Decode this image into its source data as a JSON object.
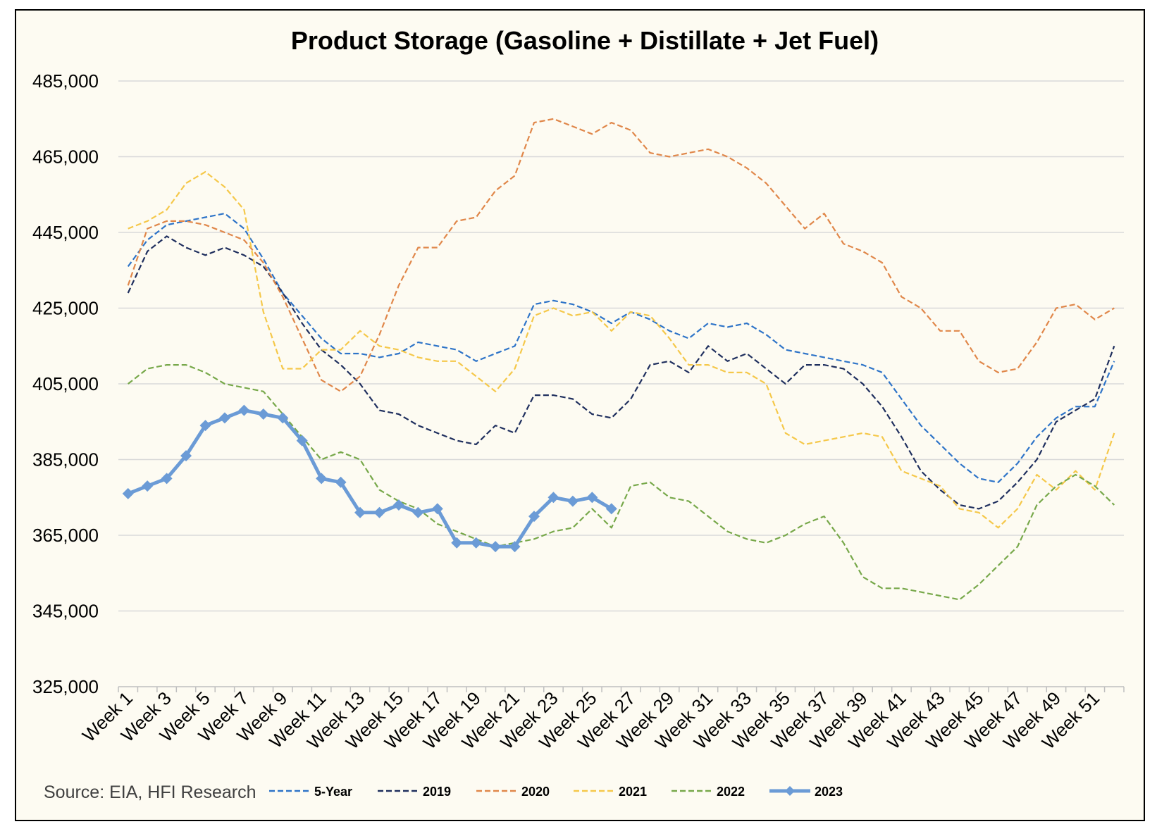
{
  "chart_data": {
    "type": "line",
    "title": "Product Storage (Gasoline + Distillate + Jet Fuel)",
    "source": "Source: EIA, HFI Research",
    "xlabel": "",
    "ylabel": "",
    "ylim": [
      325000,
      485000
    ],
    "yticks": [
      325000,
      345000,
      365000,
      385000,
      405000,
      425000,
      445000,
      465000,
      485000
    ],
    "ytick_labels": [
      "325,000",
      "345,000",
      "365,000",
      "385,000",
      "405,000",
      "425,000",
      "445,000",
      "465,000",
      "485,000"
    ],
    "xtick_labels": [
      "Week 1",
      "Week 3",
      "Week 5",
      "Week 7",
      "Week 9",
      "Week 11",
      "Week 13",
      "Week 15",
      "Week 17",
      "Week 19",
      "Week 21",
      "Week 23",
      "Week 25",
      "Week 27",
      "Week 29",
      "Week 31",
      "Week 33",
      "Week 35",
      "Week 37",
      "Week 39",
      "Week 41",
      "Week 43",
      "Week 45",
      "Week 47",
      "Week 49",
      "Week 51"
    ],
    "grid": true,
    "legend_position": "bottom",
    "background": "#fdfbf2",
    "series": [
      {
        "name": "5-Year",
        "color": "#2e74c8",
        "style": "dashed",
        "values": [
          436000,
          443000,
          447000,
          448000,
          449000,
          450000,
          446000,
          438000,
          429000,
          423000,
          417000,
          413000,
          413000,
          412000,
          413000,
          416000,
          415000,
          414000,
          411000,
          413000,
          415000,
          426000,
          427000,
          426000,
          424000,
          421000,
          424000,
          422000,
          419000,
          417000,
          421000,
          420000,
          421000,
          418000,
          414000,
          413000,
          412000,
          411000,
          410000,
          408000,
          401000,
          394000,
          389000,
          384000,
          380000,
          379000,
          384000,
          391000,
          396000,
          399000,
          399000,
          411000
        ]
      },
      {
        "name": "2019",
        "color": "#1f2f5e",
        "style": "dashed",
        "values": [
          429000,
          440000,
          444000,
          441000,
          439000,
          441000,
          439000,
          436000,
          429000,
          421000,
          414000,
          410000,
          405000,
          398000,
          397000,
          394000,
          392000,
          390000,
          389000,
          394000,
          392000,
          402000,
          402000,
          401000,
          397000,
          396000,
          401000,
          410000,
          411000,
          408000,
          415000,
          411000,
          413000,
          409000,
          405000,
          410000,
          410000,
          409000,
          405000,
          399000,
          391000,
          382000,
          377000,
          373000,
          372000,
          374000,
          379000,
          385000,
          395000,
          398000,
          401000,
          415000
        ]
      },
      {
        "name": "2020",
        "color": "#e0874a",
        "style": "dashed",
        "values": [
          431000,
          446000,
          448000,
          448000,
          447000,
          445000,
          443000,
          437000,
          428000,
          417000,
          406000,
          403000,
          407000,
          418000,
          431000,
          441000,
          441000,
          448000,
          449000,
          456000,
          460000,
          474000,
          475000,
          473000,
          471000,
          474000,
          472000,
          466000,
          465000,
          466000,
          467000,
          465000,
          462000,
          458000,
          452000,
          446000,
          450000,
          442000,
          440000,
          437000,
          428000,
          425000,
          419000,
          419000,
          411000,
          408000,
          409000,
          416000,
          425000,
          426000,
          422000,
          425000
        ]
      },
      {
        "name": "2021",
        "color": "#f5c84a",
        "style": "dashed",
        "values": [
          446000,
          448000,
          451000,
          458000,
          461000,
          457000,
          451000,
          424000,
          409000,
          409000,
          414000,
          414000,
          419000,
          415000,
          414000,
          412000,
          411000,
          411000,
          407000,
          403000,
          409000,
          423000,
          425000,
          423000,
          424000,
          419000,
          424000,
          423000,
          417000,
          410000,
          410000,
          408000,
          408000,
          405000,
          392000,
          389000,
          390000,
          391000,
          392000,
          391000,
          382000,
          380000,
          378000,
          372000,
          371000,
          367000,
          372000,
          381000,
          377000,
          382000,
          377000,
          392000
        ]
      },
      {
        "name": "2022",
        "color": "#77a84a",
        "style": "dashed",
        "values": [
          405000,
          409000,
          410000,
          410000,
          408000,
          405000,
          404000,
          403000,
          397000,
          391000,
          385000,
          387000,
          385000,
          377000,
          374000,
          372000,
          368000,
          366000,
          364000,
          362000,
          363000,
          364000,
          366000,
          367000,
          372000,
          367000,
          378000,
          379000,
          375000,
          374000,
          370000,
          366000,
          364000,
          363000,
          365000,
          368000,
          370000,
          363000,
          354000,
          351000,
          351000,
          350000,
          349000,
          348000,
          352000,
          357000,
          362000,
          373000,
          378000,
          381000,
          378000,
          373000
        ]
      },
      {
        "name": "2023",
        "color": "#6b9bd6",
        "style": "solid",
        "values": [
          376000,
          378000,
          380000,
          386000,
          394000,
          396000,
          398000,
          397000,
          396000,
          390000,
          380000,
          379000,
          371000,
          371000,
          373000,
          371000,
          372000,
          363000,
          363000,
          362000,
          362000,
          370000,
          375000,
          374000,
          375000,
          372000
        ]
      }
    ]
  }
}
